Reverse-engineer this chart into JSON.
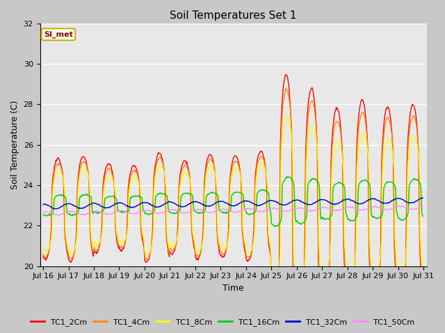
{
  "title": "Soil Temperatures Set 1",
  "xlabel": "Time",
  "ylabel": "Soil Temperature (C)",
  "ylim": [
    20,
    32
  ],
  "fig_bg": "#c8c8c8",
  "plot_bg": "#e8e8e8",
  "annotation_text": "SI_met",
  "annotation_color": "#8b0000",
  "annotation_bg": "#fffff0",
  "annotation_border": "#c8b400",
  "xtick_labels": [
    "Jul 16",
    "Jul 17",
    "Jul 18",
    "Jul 19",
    "Jul 20",
    "Jul 21",
    "Jul 22",
    "Jul 23",
    "Jul 24",
    "Jul 25",
    "Jul 26",
    "Jul 27",
    "Jul 28",
    "Jul 29",
    "Jul 30",
    "Jul 31"
  ],
  "series_colors": [
    "#ff0000",
    "#ff8800",
    "#ffff00",
    "#00cc00",
    "#0000cc",
    "#ff88ff"
  ],
  "series_labels": [
    "TC1_2Cm",
    "TC1_4Cm",
    "TC1_8Cm",
    "TC1_16Cm",
    "TC1_32Cm",
    "TC1_50Cm"
  ],
  "n_days": 15,
  "pts_per_day": 48,
  "base_temp": 22.8,
  "min_temp": 21.0,
  "daily_peak_hours": 14,
  "daily_trough_hours": 4,
  "day_peak_amps_2cm": [
    2.5,
    2.6,
    2.2,
    2.1,
    2.7,
    2.3,
    2.6,
    2.5,
    2.7,
    6.5,
    5.8,
    4.8,
    5.2,
    4.8,
    4.9,
    5.2
  ],
  "day_peak_amps_4cm": [
    2.3,
    2.4,
    2.0,
    1.9,
    2.5,
    2.1,
    2.4,
    2.3,
    2.5,
    5.8,
    5.2,
    4.2,
    4.6,
    4.3,
    4.4,
    4.6
  ],
  "day_peak_amps_8cm": [
    2.0,
    2.1,
    1.7,
    1.6,
    2.2,
    1.8,
    2.1,
    2.0,
    2.2,
    4.5,
    4.0,
    3.2,
    3.6,
    3.3,
    3.4,
    3.6
  ],
  "day_peak_amps_16cm": [
    0.5,
    0.5,
    0.4,
    0.4,
    0.5,
    0.5,
    0.5,
    0.5,
    0.6,
    1.2,
    1.1,
    0.9,
    1.0,
    0.9,
    1.0,
    1.1
  ],
  "grid_color": "#ffffff",
  "grid_lw": 1.0,
  "line_width": 1.0
}
